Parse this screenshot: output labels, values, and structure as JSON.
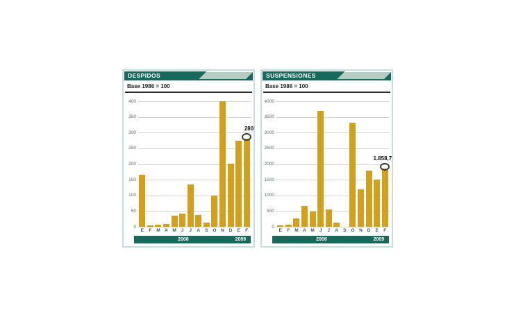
{
  "page": {
    "background": "#ffffff"
  },
  "colors": {
    "teal": "#17695b",
    "sage_band": "#b7cdc3",
    "bar_gold": "#d2a01c",
    "panel_border": "#c6dde2",
    "gridline": "#d2d6d2",
    "axis_text": "#55695f",
    "month_text": "#3e5a52",
    "annotation_ring": "#3c3c3c",
    "dark_text": "#1d1d1b"
  },
  "chart_data": [
    {
      "type": "bar",
      "title": "DESPIDOS",
      "base_label": "Base 1986 = 100",
      "categories": [
        "E",
        "F",
        "M",
        "A",
        "M",
        "J",
        "J",
        "A",
        "S",
        "O",
        "N",
        "D",
        "E",
        "F"
      ],
      "values": [
        165,
        4,
        7,
        9,
        35,
        42,
        135,
        38,
        13,
        100,
        400,
        202,
        273,
        280
      ],
      "ylim": [
        0,
        400
      ],
      "yticks": [
        0,
        50,
        100,
        150,
        200,
        250,
        300,
        350,
        400
      ],
      "grid": true,
      "legend": false,
      "year_bands": [
        {
          "label": "2008",
          "start": 0,
          "end": 11
        },
        {
          "label": "2009",
          "start": 12,
          "end": 13
        }
      ],
      "annotation": {
        "label": "280",
        "value": 280,
        "index": 13
      }
    },
    {
      "type": "bar",
      "title": "SUSPENSIONES",
      "base_label": "Base 1986 = 100",
      "categories": [
        "E",
        "F",
        "M",
        "A",
        "M",
        "J",
        "J",
        "A",
        "S",
        "O",
        "N",
        "D",
        "E",
        "F"
      ],
      "values": [
        35,
        60,
        270,
        670,
        490,
        3700,
        560,
        130,
        0,
        3320,
        1200,
        1780,
        1500,
        1858.7
      ],
      "ylim": [
        0,
        4000
      ],
      "yticks": [
        0,
        500,
        1000,
        1500,
        2000,
        2500,
        3000,
        3500,
        4000
      ],
      "grid": true,
      "legend": false,
      "year_bands": [
        {
          "label": "2008",
          "start": 0,
          "end": 11
        },
        {
          "label": "2009",
          "start": 12,
          "end": 13
        }
      ],
      "annotation": {
        "label": "1.858,7",
        "value": 1858.7,
        "index": 13
      }
    }
  ]
}
